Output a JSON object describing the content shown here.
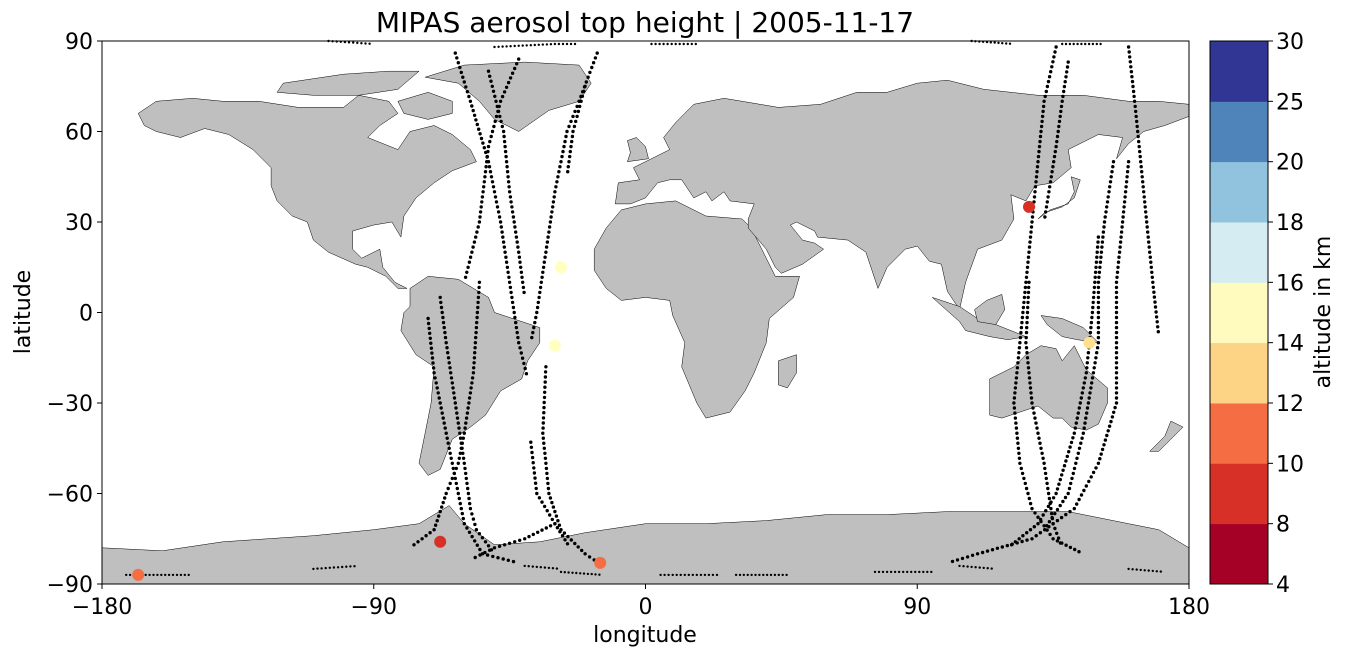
{
  "chart_data": {
    "type": "scatter",
    "title": "MIPAS aerosol top height | 2005-11-17",
    "xlabel": "longitude",
    "ylabel": "latitude",
    "xlim": [
      -180,
      180
    ],
    "ylim": [
      -90,
      90
    ],
    "xticks": [
      -180,
      -90,
      0,
      90,
      180
    ],
    "xtick_labels": [
      "−180",
      "−90",
      "0",
      "90",
      "180"
    ],
    "yticks": [
      -90,
      -60,
      -30,
      0,
      30,
      60,
      90
    ],
    "ytick_labels": [
      "−90",
      "−60",
      "−30",
      "0",
      "30",
      "60",
      "90"
    ],
    "background_map": "world coastlines, land in gray",
    "land_color": "#bfbfbf",
    "ocean_color": "#ffffff",
    "colorbar": {
      "label": "altitude in km",
      "boundaries": [
        4,
        8,
        10,
        12,
        14,
        16,
        18,
        20,
        25,
        30
      ],
      "tick_labels": [
        "4",
        "8",
        "10",
        "12",
        "14",
        "16",
        "18",
        "20",
        "25",
        "30"
      ],
      "colors": [
        "#a50026",
        "#d73027",
        "#f46d43",
        "#fdae61",
        "#fee090",
        "#ffffbf",
        "#e0f3f8",
        "#abd9e9",
        "#74add1",
        "#4575b4",
        "#313695"
      ]
    },
    "tracks": [
      {
        "points": [
          [
            -63,
            86
          ],
          [
            -58,
            70
          ],
          [
            -52,
            50
          ],
          [
            -48,
            30
          ],
          [
            -45,
            10
          ],
          [
            -42,
            -10
          ],
          [
            -39,
            -22
          ]
        ]
      },
      {
        "points": [
          [
            -52,
            80
          ],
          [
            -47,
            60
          ],
          [
            -45,
            40
          ],
          [
            -42,
            20
          ],
          [
            -40,
            5
          ]
        ]
      },
      {
        "points": [
          [
            -42,
            84
          ],
          [
            -48,
            70
          ],
          [
            -52,
            55
          ],
          [
            -55,
            30
          ],
          [
            -60,
            10
          ]
        ]
      },
      {
        "points": [
          [
            -68,
            5
          ],
          [
            -66,
            -10
          ],
          [
            -63,
            -30
          ],
          [
            -60,
            -50
          ],
          [
            -58,
            -65
          ],
          [
            -56,
            -72
          ],
          [
            -50,
            -80
          ]
        ]
      },
      {
        "points": [
          [
            -72,
            -2
          ],
          [
            -70,
            -20
          ],
          [
            -66,
            -40
          ],
          [
            -62,
            -60
          ],
          [
            -60,
            -70
          ],
          [
            -54,
            -80
          ],
          [
            -42,
            -83
          ]
        ]
      },
      {
        "points": [
          [
            -55,
            10
          ],
          [
            -57,
            -20
          ],
          [
            -60,
            -40
          ],
          [
            -62,
            -50
          ],
          [
            -66,
            -60
          ],
          [
            -70,
            -72
          ],
          [
            -78,
            -78
          ]
        ]
      },
      {
        "points": [
          [
            -16,
            86
          ],
          [
            -22,
            70
          ],
          [
            -26,
            60
          ],
          [
            -30,
            40
          ],
          [
            -33,
            20
          ],
          [
            -36,
            0
          ],
          [
            -38,
            -10
          ]
        ]
      },
      {
        "points": [
          [
            -20,
            75
          ],
          [
            -24,
            60
          ],
          [
            -26,
            45
          ]
        ]
      },
      {
        "points": [
          [
            -33,
            -18
          ],
          [
            -34,
            -40
          ],
          [
            -32,
            -60
          ],
          [
            -28,
            -72
          ],
          [
            -20,
            -80
          ],
          [
            -14,
            -84
          ]
        ]
      },
      {
        "points": [
          [
            -38,
            -43
          ],
          [
            -36,
            -60
          ],
          [
            -30,
            -70
          ],
          [
            -25,
            -78
          ]
        ]
      },
      {
        "points": [
          [
            -30,
            -70
          ],
          [
            -40,
            -75
          ],
          [
            -50,
            -78
          ],
          [
            -58,
            -82
          ]
        ]
      },
      {
        "points": [
          [
            136,
            88
          ],
          [
            132,
            70
          ],
          [
            130,
            50
          ],
          [
            128,
            30
          ],
          [
            126,
            10
          ],
          [
            124,
            -10
          ],
          [
            122,
            -30
          ],
          [
            124,
            -50
          ],
          [
            128,
            -65
          ],
          [
            135,
            -75
          ],
          [
            145,
            -80
          ]
        ]
      },
      {
        "points": [
          [
            140,
            83
          ],
          [
            138,
            70
          ],
          [
            136,
            55
          ],
          [
            132,
            30
          ]
        ]
      },
      {
        "points": [
          [
            150,
            25
          ],
          [
            148,
            0
          ],
          [
            146,
            -20
          ],
          [
            142,
            -40
          ],
          [
            136,
            -60
          ],
          [
            130,
            -70
          ],
          [
            120,
            -78
          ]
        ]
      },
      {
        "points": [
          [
            155,
            50
          ],
          [
            152,
            30
          ],
          [
            150,
            10
          ],
          [
            150,
            -10
          ],
          [
            145,
            -40
          ],
          [
            140,
            -60
          ],
          [
            132,
            -72
          ]
        ]
      },
      {
        "points": [
          [
            160,
            50
          ],
          [
            158,
            30
          ],
          [
            156,
            10
          ],
          [
            156,
            -10
          ],
          [
            156,
            -30
          ],
          [
            150,
            -50
          ],
          [
            142,
            -65
          ],
          [
            128,
            -75
          ],
          [
            110,
            -80
          ],
          [
            100,
            -83
          ]
        ]
      },
      {
        "points": [
          [
            160,
            88
          ],
          [
            162,
            70
          ],
          [
            164,
            50
          ],
          [
            166,
            30
          ],
          [
            168,
            10
          ],
          [
            170,
            -8
          ]
        ]
      },
      {
        "points": [
          [
            127,
            10
          ],
          [
            126,
            -10
          ],
          [
            128,
            -30
          ],
          [
            132,
            -50
          ],
          [
            135,
            -70
          ],
          [
            138,
            -78
          ]
        ]
      }
    ],
    "sparse_tracks": [
      {
        "points": [
          [
            -105,
            90
          ],
          [
            -90,
            89
          ]
        ]
      },
      {
        "points": [
          [
            -50,
            88
          ],
          [
            -30,
            89
          ],
          [
            -22,
            89
          ]
        ]
      },
      {
        "points": [
          [
            2,
            89
          ],
          [
            18,
            89
          ]
        ]
      },
      {
        "points": [
          [
            108,
            90
          ],
          [
            122,
            89
          ]
        ]
      },
      {
        "points": [
          [
            138,
            89
          ],
          [
            152,
            89
          ]
        ]
      },
      {
        "points": [
          [
            -172,
            -87
          ],
          [
            -150,
            -87
          ]
        ]
      },
      {
        "points": [
          [
            -110,
            -85
          ],
          [
            -95,
            -84
          ]
        ]
      },
      {
        "points": [
          [
            -40,
            -84
          ],
          [
            -28,
            -85
          ]
        ]
      },
      {
        "points": [
          [
            -28,
            -86
          ],
          [
            -14,
            -87
          ]
        ]
      },
      {
        "points": [
          [
            5,
            -87
          ],
          [
            25,
            -87
          ]
        ]
      },
      {
        "points": [
          [
            30,
            -87
          ],
          [
            48,
            -87
          ]
        ]
      },
      {
        "points": [
          [
            76,
            -86
          ],
          [
            96,
            -86
          ]
        ]
      },
      {
        "points": [
          [
            104,
            -84
          ],
          [
            116,
            -85
          ]
        ]
      },
      {
        "points": [
          [
            160,
            -85
          ],
          [
            172,
            -86
          ]
        ]
      }
    ],
    "detections": [
      {
        "lon": -28,
        "lat": 15,
        "altitude_km": 17
      },
      {
        "lon": -30,
        "lat": -11,
        "altitude_km": 17
      },
      {
        "lon": -68,
        "lat": -76,
        "altitude_km": 9
      },
      {
        "lon": -15,
        "lat": -83,
        "altitude_km": 11
      },
      {
        "lon": -168,
        "lat": -87,
        "altitude_km": 11
      },
      {
        "lon": 127,
        "lat": 35,
        "altitude_km": 9
      },
      {
        "lon": 147,
        "lat": -10,
        "altitude_km": 15
      }
    ]
  }
}
